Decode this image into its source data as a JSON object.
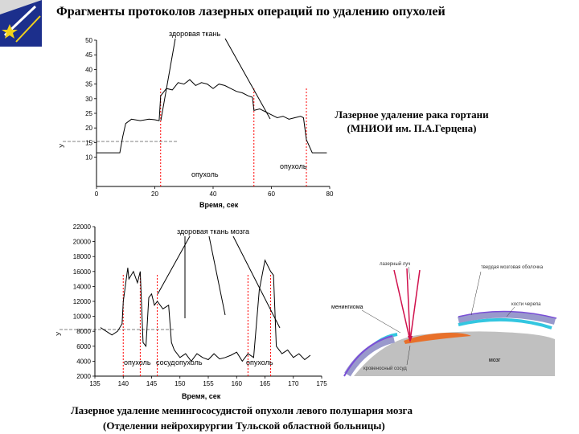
{
  "header": {
    "title": "Фрагменты протоколов лазерных операций по удалению   опухолей",
    "logo_icon": "rising-star-logo-icon"
  },
  "colors": {
    "trace": "#000000",
    "marker": "#ff0000",
    "logo_blue": "#1c2f8c",
    "logo_yellow": "#f2d21b",
    "bone": "#9999cc",
    "bone_edge": "#7a4fd6",
    "dura": "#33c6e0",
    "tumor": "#e8702a",
    "brain": "#c0c0c0",
    "laser": "#d0104c"
  },
  "chart_data": [
    {
      "type": "line",
      "title": "",
      "xlabel": "Время, сек",
      "ylabel": "",
      "xlim": [
        0,
        80
      ],
      "ylim": [
        0,
        50
      ],
      "xticks": [
        0,
        20,
        40,
        60,
        80
      ],
      "yticks": [
        10,
        15,
        20,
        25,
        30,
        35,
        40,
        45,
        50
      ],
      "annotations": [
        "здоровая ткань",
        "опухоль",
        "опухоль"
      ],
      "caption": [
        "Лазерное удаление  рака гортани",
        "(МНИОИ им. П.А.Герцена)"
      ],
      "markers_x": [
        22,
        54,
        72
      ],
      "series": [
        {
          "x": [
            0,
            8,
            9,
            10,
            12,
            15,
            18,
            20,
            21.5,
            22,
            24,
            26,
            28,
            30,
            32,
            34,
            36,
            38,
            40,
            42,
            44,
            46,
            48,
            50,
            52,
            53.5,
            54,
            56,
            58,
            60,
            62,
            64,
            66,
            68,
            70,
            71,
            72,
            74,
            76,
            79
          ],
          "values": [
            11.5,
            11.5,
            17,
            21.5,
            23,
            22.5,
            23,
            22.8,
            22.5,
            31,
            33.5,
            33,
            35.5,
            35,
            36.5,
            34.5,
            35.5,
            35,
            33.5,
            35,
            34.5,
            33.5,
            32.5,
            32,
            31,
            30.5,
            26,
            26.5,
            25.5,
            24.5,
            23.5,
            24,
            23,
            23.5,
            24,
            23.5,
            16,
            11.5,
            11.5,
            11.5
          ]
        }
      ]
    },
    {
      "type": "line",
      "title": "",
      "xlabel": "Время, сек",
      "ylabel": "",
      "xlim": [
        135,
        175
      ],
      "ylim": [
        2000,
        22000
      ],
      "xticks": [
        135,
        140,
        145,
        150,
        155,
        160,
        165,
        170,
        175
      ],
      "yticks": [
        2000,
        4000,
        6000,
        8000,
        10000,
        12000,
        14000,
        16000,
        18000,
        20000,
        22000
      ],
      "annotations": [
        "здоровая ткань мозга",
        "опухоль",
        "сосуд",
        "опухоль",
        "опухоль"
      ],
      "caption": [
        "Лазерное  удаление менингососудистой опухоли левого полушария мозга",
        "(Отделении нейрохирургии Тульской областной больницы)"
      ],
      "markers_x": [
        140,
        143,
        146,
        162,
        166
      ],
      "series": [
        {
          "x": [
            136,
            138,
            139,
            139.8,
            140,
            140.8,
            141,
            141.8,
            142.5,
            143,
            143.5,
            144,
            144.5,
            145,
            145.5,
            146,
            147,
            148,
            148.5,
            149,
            150,
            151,
            152,
            153,
            154,
            155,
            156,
            157,
            158,
            159,
            160,
            161,
            162,
            163,
            164,
            165,
            166,
            166.5,
            167,
            168,
            169,
            170,
            171,
            172,
            173
          ],
          "values": [
            8500,
            7500,
            8000,
            9000,
            12000,
            16500,
            15000,
            16000,
            14500,
            16000,
            6500,
            6000,
            12500,
            13000,
            11500,
            12000,
            11000,
            11500,
            6500,
            5500,
            4500,
            5000,
            4000,
            5000,
            4500,
            4200,
            5000,
            4300,
            4500,
            4800,
            5200,
            4000,
            5000,
            4500,
            13500,
            17500,
            16000,
            15500,
            6000,
            5000,
            5500,
            4500,
            5000,
            4200,
            4800
          ]
        }
      ]
    }
  ],
  "diagram": {
    "labels": {
      "laser_beam": "лазерный луч",
      "dura": "твердая мозговая оболочка",
      "meningioma": "менингиома",
      "skull": "кости черепа",
      "brain": "мозг",
      "vessel": "кровеносный сосуд"
    }
  }
}
